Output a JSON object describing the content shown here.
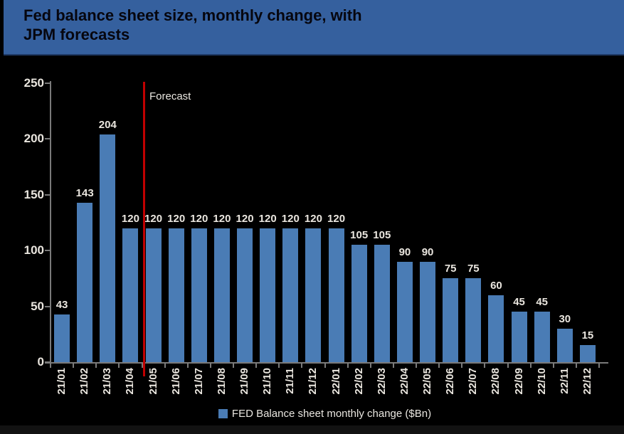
{
  "header": {
    "title_line1": "Fed balance sheet size, monthly change, with",
    "title_line2": "JPM forecasts"
  },
  "chart_data": {
    "type": "bar",
    "title": "Fed balance sheet size, monthly change, with JPM forecasts",
    "legend": "FED Balance sheet monthly change ($Bn)",
    "legend_position": "bottom",
    "forecast_label": "Forecast",
    "forecast_boundary_index": 4,
    "categories": [
      "21/01",
      "21/02",
      "21/03",
      "21/04",
      "21/05",
      "21/06",
      "21/07",
      "21/08",
      "21/09",
      "21/10",
      "21/11",
      "21/12",
      "22/01",
      "22/02",
      "22/03",
      "22/04",
      "22/05",
      "22/06",
      "22/07",
      "22/08",
      "22/09",
      "22/10",
      "22/11",
      "22/12"
    ],
    "values": [
      43,
      143,
      204,
      120,
      120,
      120,
      120,
      120,
      120,
      120,
      120,
      120,
      120,
      105,
      105,
      90,
      90,
      75,
      75,
      60,
      45,
      45,
      30,
      15
    ],
    "xlabel": "",
    "ylabel": "",
    "ylim": [
      0,
      250
    ],
    "yticks": [
      0,
      50,
      100,
      150,
      200,
      250
    ],
    "grid": false
  },
  "colors": {
    "background": "#000000",
    "header_bg": "#35609E",
    "header_border": "#1E3A66",
    "title_text": "#06060E",
    "bar": "#4A7CB5",
    "forecast_line": "#C00000",
    "axis": "#7A7A7A",
    "label_text": "#EAE6DF"
  }
}
